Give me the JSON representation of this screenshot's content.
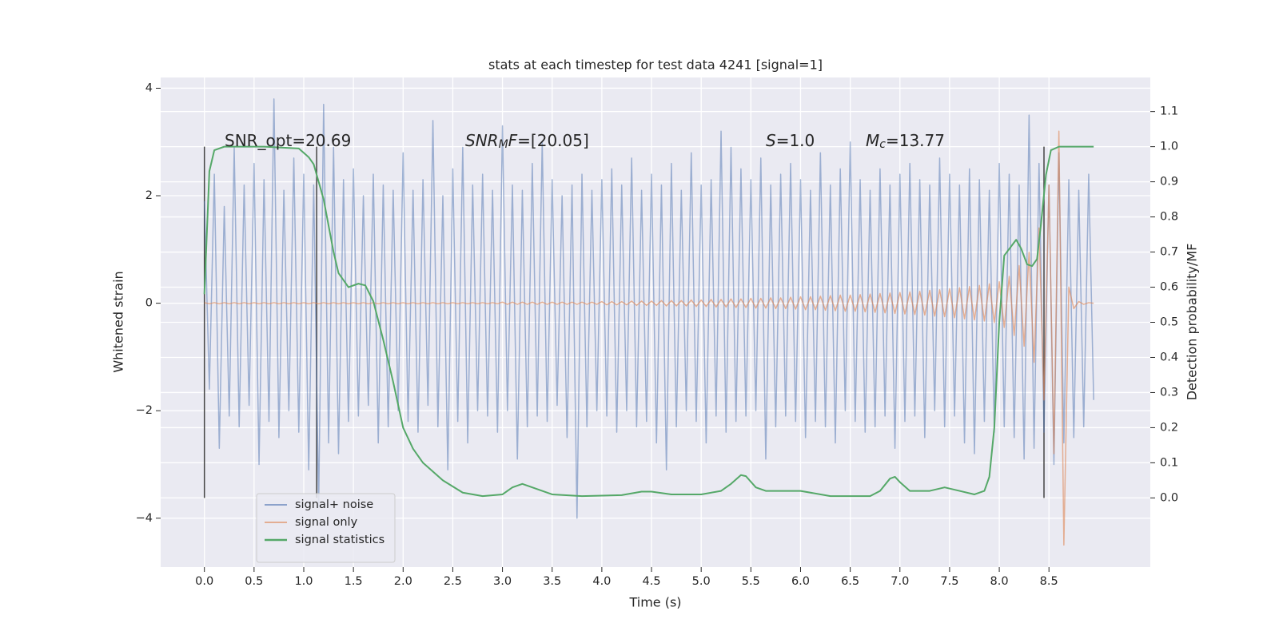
{
  "chart_data": {
    "type": "line",
    "title": "stats at each timestep for test data 4241 [signal=1]",
    "xlabel": "Time (s)",
    "ylabel": "Whitened strain",
    "y2label": "Detection probability/MF",
    "xlim": [
      -0.44,
      9.52
    ],
    "ylim": [
      -4.91,
      4.2
    ],
    "y2lim": [
      -0.197,
      1.197
    ],
    "xticks": [
      {
        "value": 0,
        "label": "0.0"
      },
      0.5,
      {
        "value": 1,
        "label": "1.0"
      },
      1.5,
      {
        "value": 2,
        "label": "2.0"
      },
      2.5,
      {
        "value": 3,
        "label": "3.0"
      },
      3.5,
      {
        "value": 4,
        "label": "4.0"
      },
      4.5,
      {
        "value": 5,
        "label": "5.0"
      },
      5.5,
      {
        "value": 6,
        "label": "6.0"
      },
      6.5,
      {
        "value": 7,
        "label": "7.0"
      },
      7.5,
      {
        "value": 8,
        "label": "8.0"
      },
      8.5
    ],
    "yticks": [
      {
        "value": -4,
        "label": "−4"
      },
      {
        "value": -2,
        "label": "−2"
      },
      0,
      2,
      4
    ],
    "y2ticks": [
      {
        "value": 0,
        "label": "0.0"
      },
      0.1,
      0.2,
      0.3,
      0.4,
      0.5,
      0.6,
      0.7,
      0.8,
      0.9,
      {
        "value": 1,
        "label": "1.0"
      },
      1.1
    ],
    "grid": true,
    "legend": "lower left",
    "x": [
      0,
      0.05,
      0.1,
      0.15,
      0.2,
      0.25,
      0.3,
      0.35,
      0.4,
      0.45,
      0.5,
      0.55,
      0.6,
      0.65,
      0.7,
      0.75,
      0.8,
      0.85,
      0.9,
      0.95,
      1,
      1.05,
      1.1,
      1.15,
      1.2,
      1.25,
      1.3,
      1.35,
      1.4,
      1.45,
      1.5,
      1.55,
      1.6,
      1.65,
      1.7,
      1.75,
      1.8,
      1.85,
      1.9,
      1.95,
      2,
      2.05,
      2.1,
      2.15,
      2.2,
      2.25,
      2.3,
      2.35,
      2.4,
      2.45,
      2.5,
      2.55,
      2.6,
      2.65,
      2.7,
      2.75,
      2.8,
      2.85,
      2.9,
      2.95,
      3,
      3.05,
      3.1,
      3.15,
      3.2,
      3.25,
      3.3,
      3.35,
      3.4,
      3.45,
      3.5,
      3.55,
      3.6,
      3.65,
      3.7,
      3.75,
      3.8,
      3.85,
      3.9,
      3.95,
      4,
      4.05,
      4.1,
      4.15,
      4.2,
      4.25,
      4.3,
      4.35,
      4.4,
      4.45,
      4.5,
      4.55,
      4.6,
      4.65,
      4.7,
      4.75,
      4.8,
      4.85,
      4.9,
      4.95,
      5,
      5.05,
      5.1,
      5.15,
      5.2,
      5.25,
      5.3,
      5.35,
      5.4,
      5.45,
      5.5,
      5.55,
      5.6,
      5.65,
      5.7,
      5.75,
      5.8,
      5.85,
      5.9,
      5.95,
      6,
      6.05,
      6.1,
      6.15,
      6.2,
      6.25,
      6.3,
      6.35,
      6.4,
      6.45,
      6.5,
      6.55,
      6.6,
      6.65,
      6.7,
      6.75,
      6.8,
      6.85,
      6.9,
      6.95,
      7,
      7.05,
      7.1,
      7.15,
      7.2,
      7.25,
      7.3,
      7.35,
      7.4,
      7.45,
      7.5,
      7.55,
      7.6,
      7.65,
      7.7,
      7.75,
      7.8,
      7.85,
      7.9,
      7.95,
      8,
      8.05,
      8.1,
      8.15,
      8.2,
      8.25,
      8.3,
      8.35,
      8.4,
      8.45,
      8.5,
      8.55,
      8.6,
      8.65,
      8.7,
      8.75,
      8.8,
      8.85,
      8.9,
      8.95
    ],
    "series": [
      {
        "name": "signal+ noise",
        "color": "#4c72b0",
        "values": [
          1.9,
          -1.6,
          2.4,
          -2.7,
          1.8,
          -2.1,
          2.9,
          -2.3,
          2.2,
          -1.9,
          2.6,
          -3.0,
          2.3,
          -2.2,
          3.8,
          -2.5,
          2.1,
          -2.0,
          2.7,
          -2.4,
          2.4,
          -3.1,
          2.2,
          -3.8,
          3.7,
          -2.6,
          2.9,
          -2.8,
          2.3,
          -2.2,
          2.5,
          -2.1,
          2.0,
          -1.9,
          2.4,
          -2.6,
          2.2,
          -2.3,
          2.1,
          -2.0,
          2.8,
          -2.2,
          2.1,
          -2.4,
          2.3,
          -1.9,
          3.4,
          -2.3,
          2.0,
          -3.1,
          2.5,
          -2.2,
          2.9,
          -2.6,
          2.2,
          -2.0,
          2.4,
          -2.1,
          2.1,
          -2.4,
          3.3,
          -2.0,
          2.2,
          -2.9,
          2.1,
          -2.3,
          2.6,
          -2.1,
          3.0,
          -2.2,
          2.3,
          -1.9,
          2.0,
          -2.5,
          2.2,
          -4.0,
          2.4,
          -2.3,
          2.1,
          -2.0,
          2.3,
          -2.1,
          2.5,
          -2.4,
          2.2,
          -2.0,
          2.7,
          -2.3,
          2.1,
          -2.2,
          2.4,
          -2.6,
          2.2,
          -3.1,
          2.6,
          -2.3,
          2.1,
          -2.0,
          2.8,
          -2.2,
          2.2,
          -2.6,
          2.3,
          -2.1,
          3.2,
          -2.4,
          2.9,
          -2.2,
          2.5,
          -2.1,
          2.3,
          -2.0,
          2.7,
          -2.9,
          2.2,
          -2.3,
          2.4,
          -2.1,
          2.6,
          -2.2,
          2.3,
          -2.5,
          2.1,
          -2.2,
          2.8,
          -2.3,
          2.2,
          -2.6,
          2.5,
          -2.0,
          3.0,
          -2.2,
          2.3,
          -2.4,
          2.1,
          -2.3,
          2.5,
          -2.1,
          2.2,
          -2.7,
          2.4,
          -2.2,
          2.6,
          -2.1,
          2.3,
          -2.5,
          2.2,
          -2.0,
          2.7,
          -2.3,
          2.4,
          -2.1,
          2.2,
          -2.6,
          2.5,
          -2.8,
          2.3,
          -2.2,
          2.1,
          -2.4,
          2.6,
          -2.3,
          2.4,
          -2.5,
          2.2,
          -2.9,
          3.5,
          -2.7,
          2.6,
          -2.4,
          2.2,
          -3.0,
          2.8,
          -2.6,
          2.3,
          -2.5,
          2.1,
          -2.3,
          2.4,
          -1.8
        ]
      },
      {
        "name": "signal only",
        "color": "#dd8452",
        "values": [
          0.01,
          -0.01,
          0.01,
          -0.01,
          0.01,
          -0.01,
          0.01,
          -0.01,
          0.01,
          -0.01,
          0.01,
          -0.01,
          0.01,
          -0.01,
          0.01,
          -0.01,
          0.01,
          -0.01,
          0.01,
          -0.01,
          0.01,
          -0.01,
          0.01,
          -0.01,
          0.01,
          -0.01,
          0.01,
          -0.01,
          0.01,
          -0.01,
          0.01,
          -0.01,
          0.01,
          -0.01,
          0.01,
          -0.01,
          0.01,
          -0.01,
          0.01,
          -0.01,
          0.01,
          -0.01,
          0.01,
          -0.01,
          0.01,
          -0.01,
          0.01,
          -0.01,
          0.01,
          -0.01,
          0.01,
          -0.01,
          0.01,
          -0.01,
          0.01,
          -0.01,
          0.01,
          -0.01,
          0.01,
          -0.01,
          0.02,
          -0.02,
          0.02,
          -0.02,
          0.02,
          -0.02,
          0.02,
          -0.02,
          0.02,
          -0.02,
          0.02,
          -0.02,
          0.02,
          -0.02,
          0.02,
          -0.02,
          0.02,
          -0.02,
          0.02,
          -0.02,
          0.03,
          -0.03,
          0.03,
          -0.03,
          0.03,
          -0.03,
          0.04,
          -0.04,
          0.04,
          -0.04,
          0.04,
          -0.04,
          0.05,
          -0.05,
          0.05,
          -0.05,
          0.05,
          -0.05,
          0.06,
          -0.06,
          0.06,
          -0.06,
          0.07,
          -0.07,
          0.07,
          -0.07,
          0.08,
          -0.08,
          0.08,
          -0.08,
          0.09,
          -0.09,
          0.09,
          -0.09,
          0.1,
          -0.1,
          0.1,
          -0.1,
          0.11,
          -0.11,
          0.12,
          -0.12,
          0.12,
          -0.12,
          0.13,
          -0.13,
          0.14,
          -0.14,
          0.15,
          -0.15,
          0.15,
          -0.15,
          0.16,
          -0.16,
          0.17,
          -0.17,
          0.18,
          -0.18,
          0.19,
          -0.19,
          0.2,
          -0.2,
          0.21,
          -0.21,
          0.22,
          -0.22,
          0.24,
          -0.24,
          0.25,
          -0.25,
          0.27,
          -0.27,
          0.29,
          -0.29,
          0.31,
          -0.31,
          0.33,
          -0.33,
          0.36,
          -0.36,
          0.4,
          -0.45,
          0.5,
          -0.6,
          0.7,
          -0.8,
          0.95,
          -1.1,
          1.4,
          -1.8,
          2.2,
          -2.8,
          3.2,
          -4.5,
          0.3,
          -0.1,
          0.03,
          -0.02,
          0.01,
          0
        ]
      },
      {
        "name": "signal statistics",
        "color": "#55a868",
        "axis": "y2",
        "x": [
          0,
          0.05,
          0.1,
          0.2,
          0.6,
          0.95,
          1.05,
          1.1,
          1.2,
          1.3,
          1.35,
          1.45,
          1.55,
          1.62,
          1.7,
          1.8,
          1.9,
          2.0,
          2.1,
          2.2,
          2.4,
          2.6,
          2.8,
          3.0,
          3.1,
          3.2,
          3.3,
          3.5,
          3.8,
          4.2,
          4.4,
          4.5,
          4.7,
          5.0,
          5.2,
          5.3,
          5.4,
          5.45,
          5.55,
          5.65,
          5.9,
          6.0,
          6.3,
          6.7,
          6.8,
          6.9,
          6.95,
          7.0,
          7.1,
          7.3,
          7.45,
          7.6,
          7.75,
          7.85,
          7.9,
          7.95,
          8.0,
          8.05,
          8.17,
          8.22,
          8.28,
          8.33,
          8.38,
          8.42,
          8.47,
          8.52,
          8.6,
          8.95
        ],
        "values": [
          0.58,
          0.93,
          0.99,
          1.0,
          1.0,
          0.995,
          0.97,
          0.95,
          0.85,
          0.7,
          0.64,
          0.6,
          0.61,
          0.605,
          0.56,
          0.45,
          0.33,
          0.2,
          0.14,
          0.1,
          0.05,
          0.015,
          0.005,
          0.01,
          0.03,
          0.04,
          0.03,
          0.01,
          0.005,
          0.008,
          0.018,
          0.018,
          0.01,
          0.01,
          0.02,
          0.04,
          0.065,
          0.062,
          0.03,
          0.02,
          0.02,
          0.02,
          0.005,
          0.005,
          0.02,
          0.055,
          0.06,
          0.045,
          0.02,
          0.02,
          0.03,
          0.02,
          0.01,
          0.02,
          0.06,
          0.2,
          0.5,
          0.69,
          0.735,
          0.71,
          0.665,
          0.66,
          0.68,
          0.78,
          0.92,
          0.99,
          1.0,
          1.0
        ]
      }
    ],
    "vlines": {
      "x": [
        0,
        1.13,
        8.45
      ],
      "ymin": 0,
      "ymax": 1,
      "axis": "y2",
      "color": "#444444"
    },
    "annotations": [
      [
        {
          "text": "SNR_opt=20.69"
        }
      ],
      [
        {
          "text": "SNR",
          "style": "italic"
        },
        {
          "text": "M",
          "style": "italic-sub"
        },
        {
          "text": "F",
          "style": "italic"
        },
        {
          "text": "=[20.05]"
        }
      ],
      [
        {
          "text": "S",
          "style": "italic"
        },
        {
          "text": "=1.0"
        }
      ],
      [
        {
          "text": "M",
          "style": "italic"
        },
        {
          "text": "c",
          "style": "italic-sub"
        },
        {
          "text": "=13.77"
        }
      ]
    ]
  }
}
